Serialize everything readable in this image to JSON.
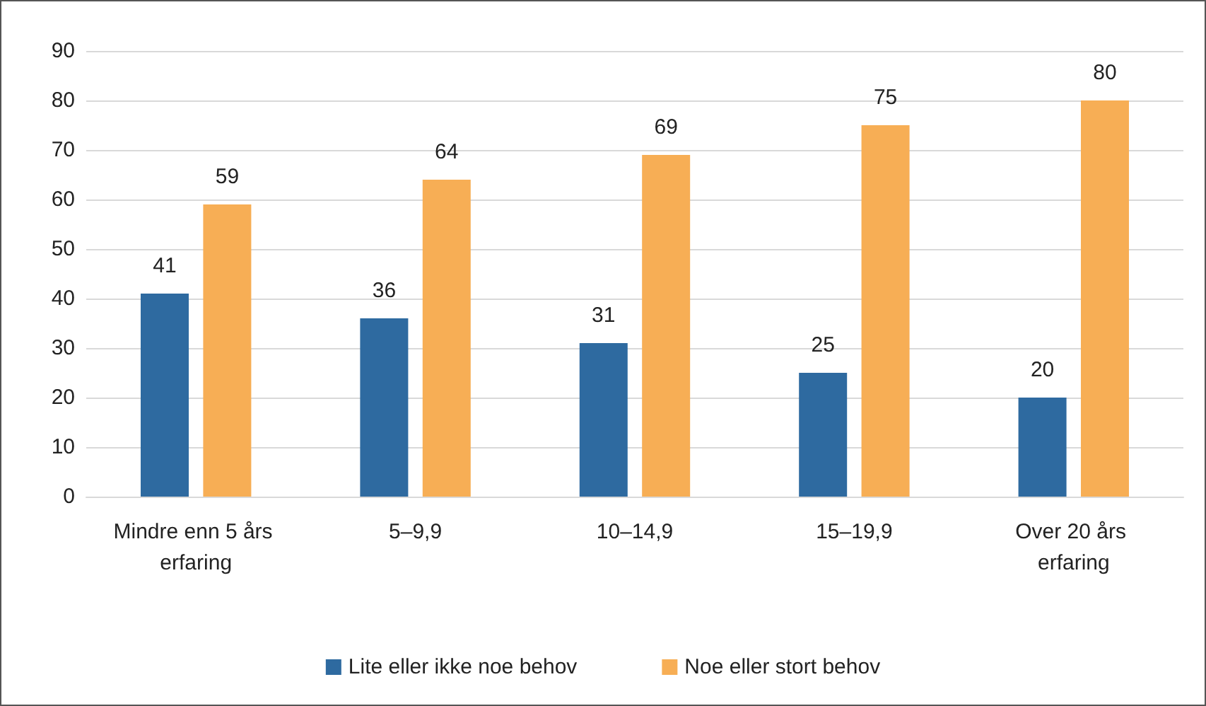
{
  "chart_data": {
    "type": "bar",
    "categories": [
      "Mindre enn 5 års erfaring",
      "5–9,9",
      "10–14,9",
      "15–19,9",
      "Over 20 års erfaring"
    ],
    "series": [
      {
        "name": "Lite eller ikke noe behov",
        "color": "#2e6aa0",
        "values": [
          41,
          36,
          31,
          25,
          20
        ]
      },
      {
        "name": "Noe eller stort behov",
        "color": "#f7ae55",
        "values": [
          59,
          64,
          69,
          75,
          80
        ]
      }
    ],
    "ylim": [
      0,
      90
    ],
    "yticks": [
      0,
      10,
      20,
      30,
      40,
      50,
      60,
      70,
      80,
      90
    ],
    "grid": "y",
    "legend": "bottom",
    "data_labels": true
  }
}
